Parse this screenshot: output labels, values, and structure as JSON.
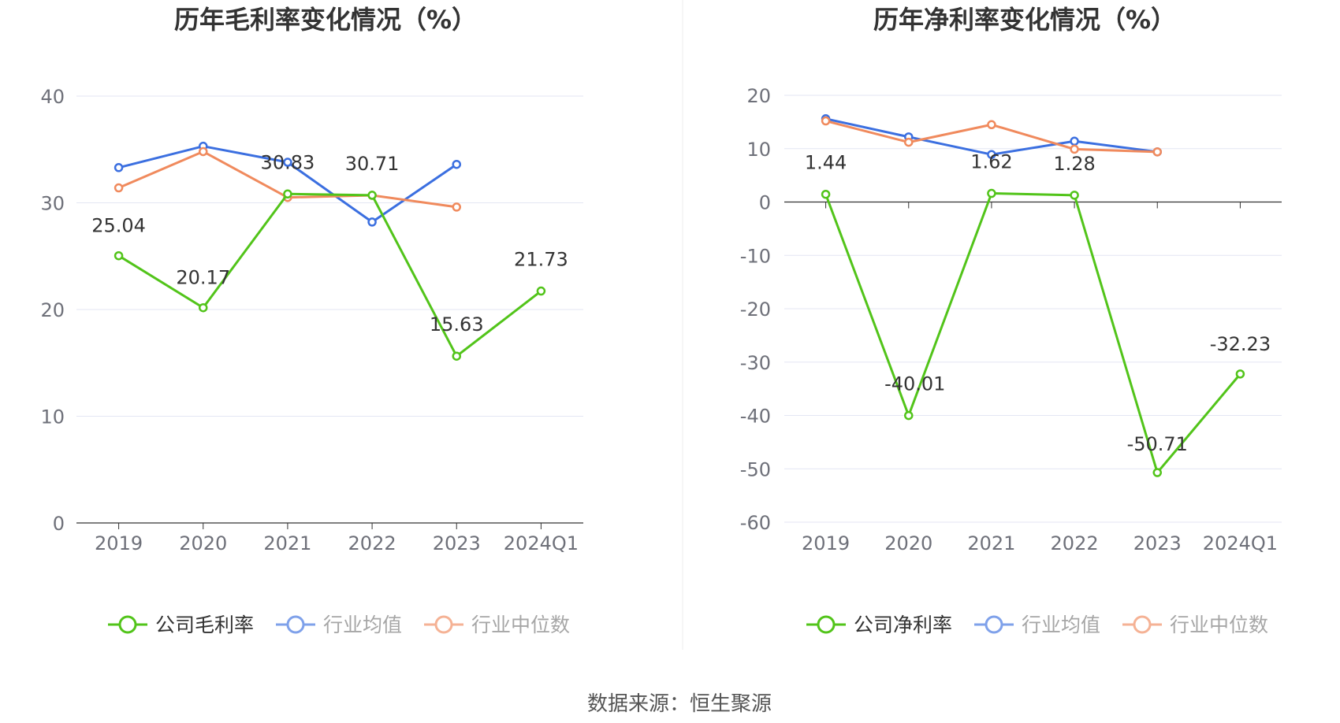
{
  "source_text": "数据来源：恒生聚源",
  "chart_data": [
    {
      "type": "line",
      "title": "历年毛利率变化情况（%）",
      "xlabel": "",
      "ylabel": "",
      "categories": [
        "2019",
        "2020",
        "2021",
        "2022",
        "2023",
        "2024Q1"
      ],
      "ylim": [
        0,
        40
      ],
      "yticks": [
        0,
        10,
        20,
        30,
        40
      ],
      "grid": true,
      "legend_position": "bottom",
      "series": [
        {
          "name": "公司毛利率",
          "color": "#52c41a",
          "values": [
            25.04,
            20.17,
            30.83,
            30.71,
            15.63,
            21.73
          ],
          "labels": [
            "25.04",
            "20.17",
            "30.83",
            "30.71",
            "15.63",
            "21.73"
          ]
        },
        {
          "name": "行业均值",
          "color": "#3b6fe0",
          "values": [
            33.3,
            35.3,
            33.8,
            28.2,
            33.6,
            null
          ]
        },
        {
          "name": "行业中位数",
          "color": "#f08a5d",
          "values": [
            31.4,
            34.8,
            30.5,
            30.7,
            29.6,
            null
          ]
        }
      ]
    },
    {
      "type": "line",
      "title": "历年净利率变化情况（%）",
      "xlabel": "",
      "ylabel": "",
      "categories": [
        "2019",
        "2020",
        "2021",
        "2022",
        "2023",
        "2024Q1"
      ],
      "ylim": [
        -60,
        20
      ],
      "yticks": [
        -60,
        -50,
        -40,
        -30,
        -20,
        -10,
        0,
        10,
        20
      ],
      "grid": true,
      "legend_position": "bottom",
      "series": [
        {
          "name": "公司净利率",
          "color": "#52c41a",
          "values": [
            1.44,
            -40.01,
            1.62,
            1.28,
            -50.71,
            -32.23
          ],
          "labels": [
            "1.44",
            "-40.01",
            "1.62",
            "1.28",
            "-50.71",
            "-32.23"
          ]
        },
        {
          "name": "行业均值",
          "color": "#3b6fe0",
          "values": [
            15.6,
            12.2,
            8.9,
            11.4,
            9.4,
            null
          ]
        },
        {
          "name": "行业中位数",
          "color": "#f08a5d",
          "values": [
            15.2,
            11.2,
            14.5,
            9.9,
            9.4,
            null
          ]
        }
      ]
    }
  ]
}
